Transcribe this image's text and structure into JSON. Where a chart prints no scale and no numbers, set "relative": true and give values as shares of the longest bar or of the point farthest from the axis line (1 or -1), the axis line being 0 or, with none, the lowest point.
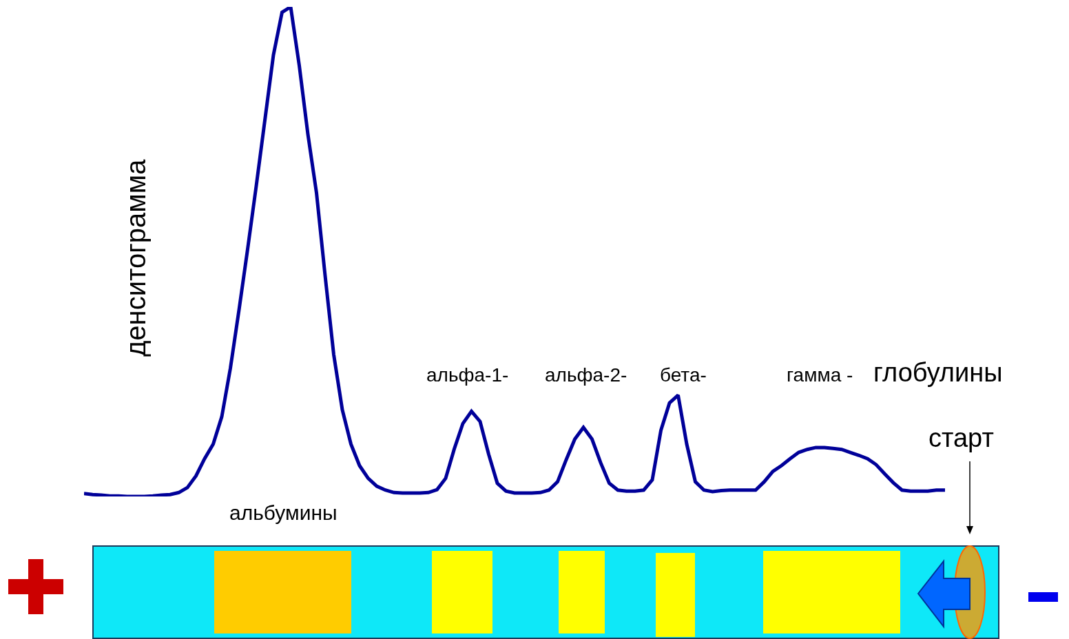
{
  "chart_data": {
    "type": "line",
    "relative": true,
    "ylabel": "денситограмма",
    "annotations": [
      "альбумины",
      "альфа-1-",
      "альфа-2-",
      "бета-",
      "гамма -",
      "глобулины",
      "старт"
    ],
    "categories": [
      null,
      null,
      null,
      null,
      null,
      null,
      null,
      null,
      null,
      null,
      null,
      null,
      null,
      null,
      null,
      null,
      null,
      null,
      null,
      null,
      null,
      null,
      null,
      null,
      null,
      null,
      null,
      null,
      null,
      null,
      null,
      null,
      null,
      null,
      null,
      null,
      null,
      null,
      null,
      null,
      null,
      null,
      null,
      null,
      null,
      null,
      null,
      null,
      null,
      null,
      null,
      null,
      null,
      null,
      null,
      null,
      null,
      null,
      null,
      null,
      null,
      null,
      null,
      null,
      null,
      null,
      null,
      null,
      null,
      null,
      null,
      null,
      null,
      null,
      null,
      null,
      null,
      null,
      null,
      null,
      null,
      null,
      null,
      null,
      null,
      null,
      null,
      null,
      null,
      null,
      null,
      null,
      null,
      null,
      null,
      null,
      null,
      null,
      null,
      null,
      null
    ],
    "series": [
      {
        "color": "#000099",
        "values": [
          0.006,
          0.004,
          0.003,
          0.001,
          0.001,
          0,
          0,
          0,
          0.001,
          0.003,
          0.004,
          0.008,
          0.018,
          0.042,
          0.077,
          0.107,
          0.163,
          0.262,
          0.381,
          0.505,
          0.634,
          0.768,
          0.902,
          0.989,
          1,
          0.88,
          0.74,
          0.62,
          0.451,
          0.29,
          0.177,
          0.107,
          0.063,
          0.037,
          0.021,
          0.013,
          0.008,
          0.007,
          0.007,
          0.007,
          0.008,
          0.014,
          0.037,
          0.097,
          0.149,
          0.174,
          0.153,
          0.086,
          0.027,
          0.011,
          0.007,
          0.007,
          0.007,
          0.008,
          0.013,
          0.03,
          0.075,
          0.117,
          0.141,
          0.117,
          0.069,
          0.027,
          0.013,
          0.011,
          0.011,
          0.013,
          0.034,
          0.135,
          0.191,
          0.207,
          0.107,
          0.03,
          0.013,
          0.01,
          0.012,
          0.013,
          0.013,
          0.013,
          0.013,
          0.03,
          0.051,
          0.063,
          0.077,
          0.09,
          0.096,
          0.1,
          0.1,
          0.098,
          0.096,
          0.09,
          0.084,
          0.077,
          0.065,
          0.046,
          0.028,
          0.013,
          0.011,
          0.011,
          0.011,
          0.013,
          0.013
        ]
      }
    ]
  }
}
